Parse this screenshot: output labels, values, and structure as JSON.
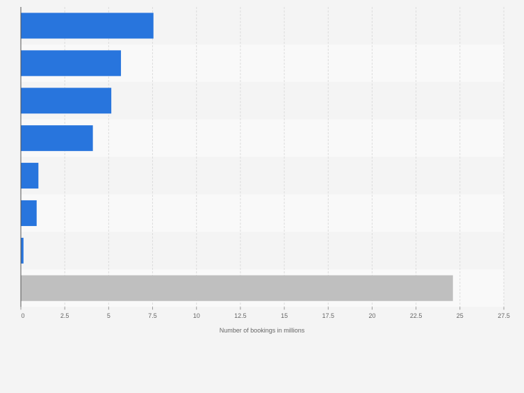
{
  "chart_data": {
    "type": "bar",
    "orientation": "horizontal",
    "categories": [
      "",
      "",
      "",
      "",
      "",
      "",
      "",
      ""
    ],
    "values": [
      7.55,
      5.7,
      5.15,
      4.1,
      1.0,
      0.9,
      0.15,
      24.6
    ],
    "bar_colors": [
      "#2875dd",
      "#2875dd",
      "#2875dd",
      "#2875dd",
      "#2875dd",
      "#2875dd",
      "#2875dd",
      "#bfbfbf"
    ],
    "xlabel": "Number of bookings in millions",
    "xlim": [
      0,
      27.5
    ],
    "xticks": [
      0,
      2.5,
      5,
      7.5,
      10,
      12.5,
      15,
      17.5,
      20,
      22.5,
      25,
      27.5
    ],
    "xtick_labels": [
      "0",
      "2.5",
      "5",
      "7.5",
      "10",
      "12.5",
      "15",
      "17.5",
      "20",
      "22.5",
      "25",
      "27.5"
    ],
    "grid": "vertical-dashed",
    "row_band_colors": [
      "#f4f4f4",
      "#f9f9f9"
    ]
  }
}
